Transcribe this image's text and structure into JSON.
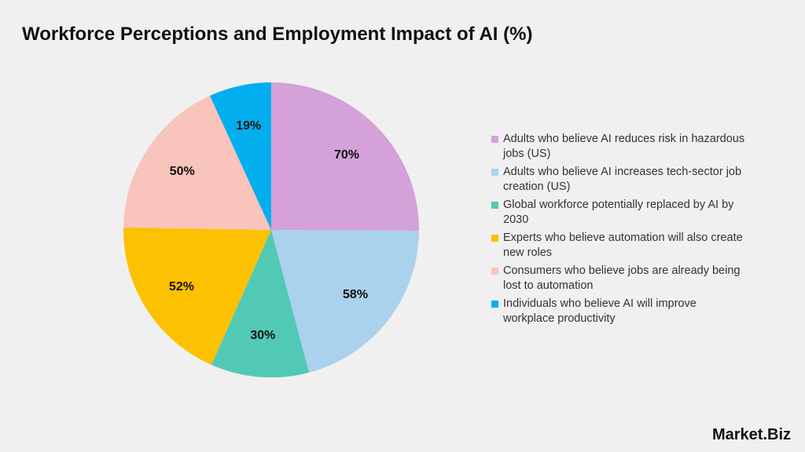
{
  "chart_data": {
    "type": "pie",
    "title": "Workforce Perceptions and Employment Impact of AI (%)",
    "categories": [
      "Adults who believe AI reduces risk in hazardous jobs (US)",
      "Adults who believe AI increases tech-sector job creation (US)",
      "Global workforce potentially replaced by AI by 2030",
      "Experts who believe automation will also create new roles",
      "Consumers who believe jobs are already being lost to automation",
      "Individuals who believe AI will improve workplace productivity"
    ],
    "values": [
      70,
      58,
      30,
      52,
      50,
      19
    ],
    "value_labels": [
      "70%",
      "58%",
      "30%",
      "52%",
      "50%",
      "19%"
    ],
    "colors": [
      "#d4a1d9",
      "#aad2ec",
      "#52c9b4",
      "#fcc100",
      "#f9c4bb",
      "#03aeee"
    ],
    "legend": "right"
  },
  "brand": "Market.Biz"
}
